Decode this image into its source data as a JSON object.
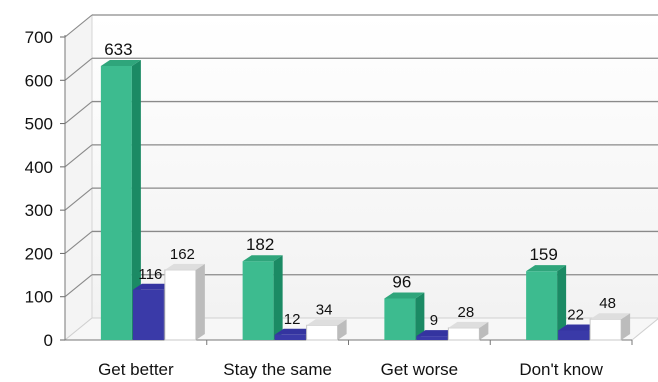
{
  "chart_data": {
    "type": "bar",
    "categories": [
      "Get better",
      "Stay the same",
      "Get worse",
      "Don't know"
    ],
    "series": [
      {
        "values": [
          633,
          182,
          96,
          159
        ],
        "color": "#3dbb8f"
      },
      {
        "values": [
          116,
          12,
          9,
          22
        ],
        "color": "#3a3aa8"
      },
      {
        "values": [
          162,
          34,
          28,
          48
        ],
        "color": "#ffffff"
      }
    ],
    "ylim": [
      0,
      700
    ],
    "yticks": [
      0,
      100,
      200,
      300,
      400,
      500,
      600,
      700
    ],
    "grid": true,
    "legend": "none",
    "style": "3d-clustered-columns"
  }
}
